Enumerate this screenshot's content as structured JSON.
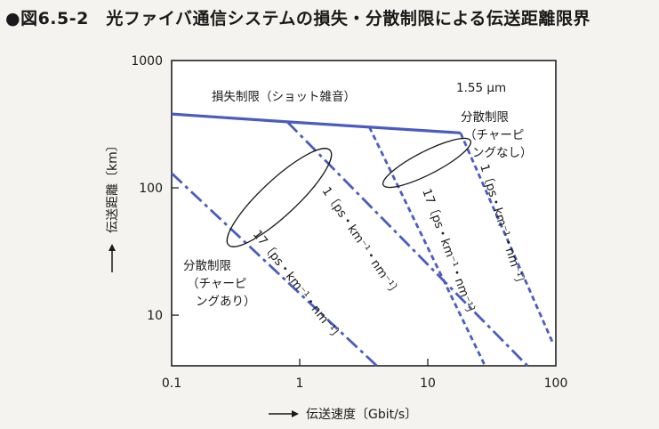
{
  "figure": {
    "title": "●図6.5-2　光ファイバ通信システムの損失・分散制限による伝送距離限界"
  },
  "chart_data": {
    "type": "line",
    "title": "●図6.5-2　光ファイバ通信システムの損失・分散制限による伝送距離限界",
    "xlabel": "伝送速度〔Gbit/s〕",
    "ylabel": "伝送距離〔km〕",
    "xscale": "log",
    "yscale": "log",
    "xlim": [
      0.1,
      100
    ],
    "ylim": [
      4,
      1000
    ],
    "xticks": [
      {
        "value": 0.1,
        "label": "0.1"
      },
      {
        "value": 1,
        "label": "1"
      },
      {
        "value": 10,
        "label": "10"
      },
      {
        "value": 100,
        "label": "100"
      }
    ],
    "yticks": [
      {
        "value": 10,
        "label": "10"
      },
      {
        "value": 100,
        "label": "100"
      },
      {
        "value": 1000,
        "label": "1000"
      }
    ],
    "grid": false,
    "colors": {
      "line": "#4a5cc0",
      "frame": "#222222",
      "text": "#1a1a1a"
    },
    "series": [
      {
        "id": "loss",
        "style": "solid",
        "x": [
          0.1,
          0.8,
          18
        ],
        "y": [
          380,
          330,
          270
        ]
      },
      {
        "id": "dispersion-1-with-chirp",
        "style": "dashdot",
        "x": [
          0.8,
          60
        ],
        "y": [
          330,
          4
        ]
      },
      {
        "id": "dispersion-17-with-chirp",
        "style": "dashdot",
        "x": [
          0.1,
          4
        ],
        "y": [
          130,
          4
        ]
      },
      {
        "id": "dispersion-17-no-chirp",
        "style": "dashed",
        "x": [
          3.5,
          28
        ],
        "y": [
          300,
          4
        ]
      },
      {
        "id": "dispersion-1-no-chirp",
        "style": "dashed",
        "x": [
          18,
          95
        ],
        "y": [
          270,
          6
        ]
      }
    ],
    "annotations": [
      {
        "id": "loss-label",
        "text": "損失制限（ショット雑音）"
      },
      {
        "id": "wavelength",
        "text": "1.55 μm"
      },
      {
        "id": "no-chirp-1",
        "text": "分散制限"
      },
      {
        "id": "no-chirp-2",
        "text": "（チャーピ"
      },
      {
        "id": "no-chirp-3",
        "text": "ングなし）"
      },
      {
        "id": "with-chirp-1",
        "text": "分散制限"
      },
      {
        "id": "with-chirp-2",
        "text": "（チャーピ"
      },
      {
        "id": "with-chirp-3",
        "text": "ングあり）"
      },
      {
        "id": "d1-with-chirp",
        "text": "1〔ps・km⁻¹・nm⁻¹〕"
      },
      {
        "id": "d17-with-chirp",
        "text": "17〔ps・km⁻¹・nm⁻¹〕"
      },
      {
        "id": "d17-no-chirp",
        "text": "17〔ps・km⁻¹・nm⁻¹〕"
      },
      {
        "id": "d1-no-chirp",
        "text": "1〔ps・km⁻¹・nm⁻¹〕"
      }
    ]
  }
}
